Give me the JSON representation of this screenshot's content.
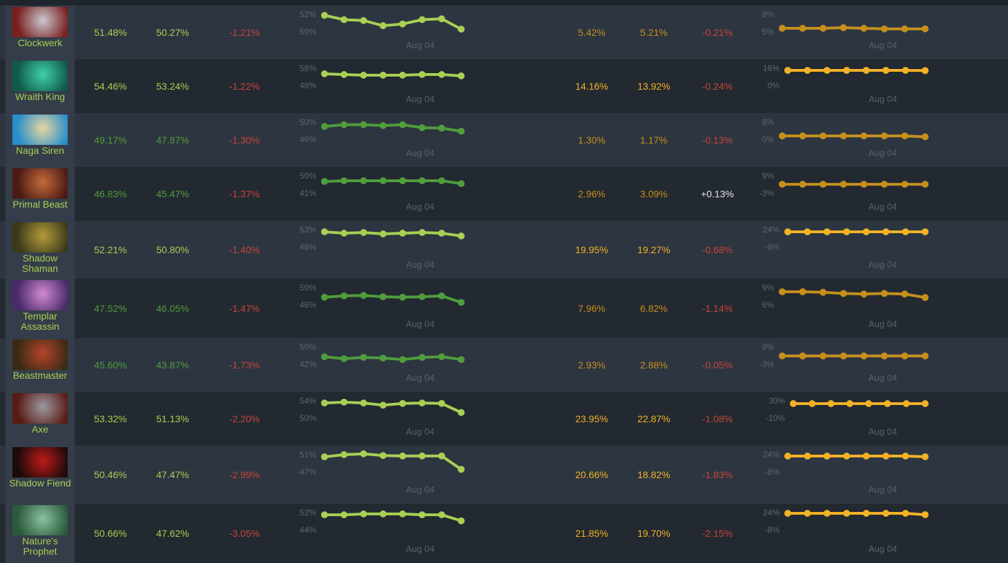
{
  "colors": {
    "win_high": "#a9cf54",
    "win_low": "#4f9d3c",
    "pick_high": "#f2b228",
    "pick_low": "#c68f1c",
    "negative": "#c8453b",
    "positive": "#e6e6e6",
    "hero_name": "#a9cf54"
  },
  "date_label": "Aug 04",
  "rows": [
    {
      "hero": "Clockwerk",
      "win_before": "51.48%",
      "win_after": "50.27%",
      "win_delta": "-1.21%",
      "win_ticks": [
        "52%",
        "50%"
      ],
      "win_scale": [
        50,
        52
      ],
      "win_series": [
        51.9,
        51.4,
        51.3,
        50.7,
        50.9,
        51.4,
        51.5,
        50.3
      ],
      "pick_before": "5.42%",
      "pick_after": "5.21%",
      "pick_delta": "-0.21%",
      "pick_ticks": [
        "8%",
        "5%"
      ],
      "pick_scale": [
        5,
        8
      ],
      "pick_series": [
        5.6,
        5.6,
        5.6,
        5.7,
        5.6,
        5.5,
        5.5,
        5.5
      ],
      "win_tone": "high",
      "pick_tone": "low",
      "portrait": [
        "#7a1f1f",
        "#c9c9d0"
      ]
    },
    {
      "hero": "Wraith King",
      "win_before": "54.46%",
      "win_after": "53.24%",
      "win_delta": "-1.22%",
      "win_ticks": [
        "58%",
        "48%"
      ],
      "win_scale": [
        48,
        58
      ],
      "win_series": [
        54.8,
        54.4,
        54.0,
        54.0,
        54.0,
        54.4,
        54.4,
        53.6
      ],
      "pick_before": "14.16%",
      "pick_after": "13.92%",
      "pick_delta": "-0.24%",
      "pick_ticks": [
        "16%",
        "0%"
      ],
      "pick_scale": [
        0,
        16
      ],
      "pick_series": [
        14.1,
        14.1,
        14.1,
        14.1,
        14.1,
        14.1,
        14.1,
        13.9
      ],
      "win_tone": "high",
      "pick_tone": "high",
      "portrait": [
        "#0f5a48",
        "#3fd1a8"
      ]
    },
    {
      "hero": "Naga Siren",
      "win_before": "49.17%",
      "win_after": "47.87%",
      "win_delta": "-1.30%",
      "win_ticks": [
        "50%",
        "46%"
      ],
      "win_scale": [
        46,
        50
      ],
      "win_series": [
        49.0,
        49.4,
        49.4,
        49.2,
        49.4,
        48.7,
        48.6,
        47.9
      ],
      "pick_before": "1.30%",
      "pick_after": "1.17%",
      "pick_delta": "-0.13%",
      "pick_ticks": [
        "8%",
        "0%"
      ],
      "pick_scale": [
        0,
        8
      ],
      "pick_series": [
        1.6,
        1.6,
        1.6,
        1.6,
        1.6,
        1.6,
        1.6,
        1.2
      ],
      "win_tone": "low",
      "pick_tone": "low",
      "portrait": [
        "#2a8fc9",
        "#e8d6a0"
      ]
    },
    {
      "hero": "Primal Beast",
      "win_before": "46.83%",
      "win_after": "45.47%",
      "win_delta": "-1.37%",
      "win_ticks": [
        "50%",
        "41%"
      ],
      "win_scale": [
        41,
        50
      ],
      "win_series": [
        47.1,
        47.5,
        47.5,
        47.5,
        47.5,
        47.5,
        47.5,
        46.0
      ],
      "pick_before": "2.96%",
      "pick_after": "3.09%",
      "pick_delta": "+0.13%",
      "pick_ticks": [
        "9%",
        "-3%"
      ],
      "pick_scale": [
        -3,
        9
      ],
      "pick_series": [
        3.2,
        3.2,
        3.2,
        3.2,
        3.2,
        3.2,
        3.2,
        3.2
      ],
      "win_tone": "low",
      "pick_tone": "low",
      "portrait": [
        "#4a1a14",
        "#c46a3a"
      ]
    },
    {
      "hero": "Shadow Shaman",
      "win_before": "52.21%",
      "win_after": "50.80%",
      "win_delta": "-1.40%",
      "win_ticks": [
        "53%",
        "48%"
      ],
      "win_scale": [
        48,
        53
      ],
      "win_series": [
        52.4,
        52.0,
        52.2,
        51.8,
        52.0,
        52.2,
        52.0,
        51.2
      ],
      "pick_before": "19.95%",
      "pick_after": "19.27%",
      "pick_delta": "-0.68%",
      "pick_ticks": [
        "24%",
        "-8%"
      ],
      "pick_scale": [
        -8,
        24
      ],
      "pick_series": [
        20.2,
        20.2,
        20.2,
        20.2,
        20.2,
        20.2,
        20.2,
        20.2
      ],
      "win_tone": "high",
      "pick_tone": "high",
      "portrait": [
        "#3a3a1a",
        "#b59a3a"
      ]
    },
    {
      "hero": "Templar Assassin",
      "win_before": "47.52%",
      "win_after": "46.05%",
      "win_delta": "-1.47%",
      "win_ticks": [
        "50%",
        "46%"
      ],
      "win_scale": [
        46,
        50
      ],
      "win_series": [
        47.8,
        48.1,
        48.2,
        47.9,
        47.8,
        47.9,
        48.1,
        46.6
      ],
      "pick_before": "7.96%",
      "pick_after": "6.82%",
      "pick_delta": "-1.14%",
      "pick_ticks": [
        "9%",
        "6%"
      ],
      "pick_scale": [
        6,
        9
      ],
      "pick_series": [
        8.3,
        8.3,
        8.2,
        8.0,
        7.9,
        8.0,
        7.9,
        7.3
      ],
      "win_tone": "low",
      "pick_tone": "low",
      "portrait": [
        "#4a2a6a",
        "#d08ad0"
      ]
    },
    {
      "hero": "Beastmaster",
      "win_before": "45.60%",
      "win_after": "43.87%",
      "win_delta": "-1.73%",
      "win_ticks": [
        "50%",
        "42%"
      ],
      "win_scale": [
        42,
        50
      ],
      "win_series": [
        45.5,
        44.6,
        45.2,
        44.9,
        44.2,
        45.2,
        45.5,
        44.2
      ],
      "pick_before": "2.93%",
      "pick_after": "2.88%",
      "pick_delta": "-0.05%",
      "pick_ticks": [
        "9%",
        "-3%"
      ],
      "pick_scale": [
        -3,
        9
      ],
      "pick_series": [
        2.8,
        2.8,
        2.8,
        2.8,
        2.8,
        2.8,
        2.8,
        2.8
      ],
      "win_tone": "low",
      "pick_tone": "low",
      "portrait": [
        "#3a2a14",
        "#b4442a"
      ]
    },
    {
      "hero": "Axe",
      "win_before": "53.32%",
      "win_after": "51.13%",
      "win_delta": "-2.20%",
      "win_ticks": [
        "54%",
        "50%"
      ],
      "win_scale": [
        50,
        54
      ],
      "win_series": [
        53.5,
        53.7,
        53.5,
        53.0,
        53.4,
        53.5,
        53.4,
        51.3
      ],
      "pick_before": "23.95%",
      "pick_after": "22.87%",
      "pick_delta": "-1.08%",
      "pick_ticks": [
        "30%",
        "-10%"
      ],
      "pick_scale": [
        -10,
        30
      ],
      "pick_series": [
        23.6,
        23.6,
        23.6,
        23.6,
        23.6,
        23.6,
        23.6,
        23.6
      ],
      "win_tone": "high",
      "pick_tone": "high",
      "portrait": [
        "#5a1a14",
        "#9a9aa0"
      ]
    },
    {
      "hero": "Shadow Fiend",
      "win_before": "50.46%",
      "win_after": "47.47%",
      "win_delta": "-2.99%",
      "win_ticks": [
        "51%",
        "47%"
      ],
      "win_scale": [
        47,
        51
      ],
      "win_series": [
        50.5,
        51.0,
        51.2,
        50.8,
        50.7,
        50.7,
        50.7,
        47.6
      ],
      "pick_before": "20.66%",
      "pick_after": "18.82%",
      "pick_delta": "-1.83%",
      "pick_ticks": [
        "24%",
        "-8%"
      ],
      "pick_scale": [
        -8,
        24
      ],
      "pick_series": [
        21.4,
        21.4,
        21.4,
        21.4,
        21.4,
        21.4,
        21.4,
        20.2
      ],
      "win_tone": "high",
      "pick_tone": "high",
      "portrait": [
        "#1a0a0a",
        "#c01a1a"
      ]
    },
    {
      "hero": "Nature's Prophet",
      "win_before": "50.66%",
      "win_after": "47.62%",
      "win_delta": "-3.05%",
      "win_ticks": [
        "52%",
        "44%"
      ],
      "win_scale": [
        44,
        52
      ],
      "win_series": [
        51.0,
        51.0,
        51.4,
        51.4,
        51.4,
        51.0,
        51.0,
        48.2
      ],
      "pick_before": "21.85%",
      "pick_after": "19.70%",
      "pick_delta": "-2.15%",
      "pick_ticks": [
        "24%",
        "-8%"
      ],
      "pick_scale": [
        -8,
        24
      ],
      "pick_series": [
        22.7,
        22.7,
        22.7,
        22.7,
        22.7,
        22.7,
        22.7,
        20.2
      ],
      "win_tone": "high",
      "pick_tone": "high",
      "portrait": [
        "#2a5a3a",
        "#8ac0a0"
      ]
    }
  ]
}
